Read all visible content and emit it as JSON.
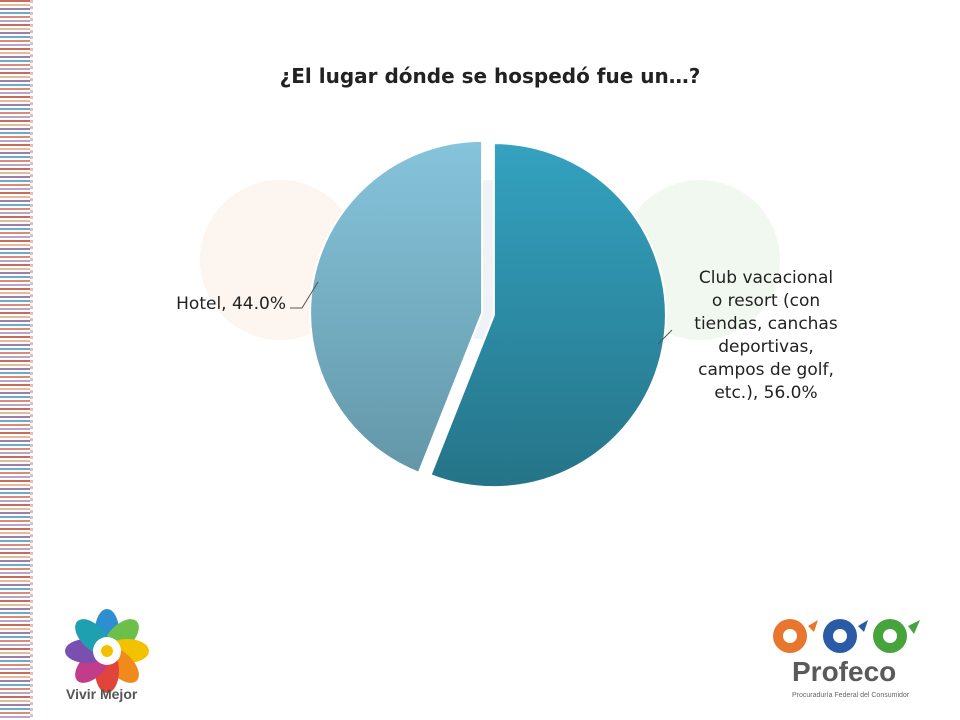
{
  "chart_data": {
    "type": "pie",
    "title": "¿El lugar dónde se hospedó fue un…?",
    "slices": [
      {
        "label_lines": [
          "Club vacacional",
          "o resort (con",
          "tiendas, canchas",
          "deportivas,",
          "campos de golf,",
          "etc.), 56.0%"
        ],
        "value": 56.0,
        "color": "#2d91ad"
      },
      {
        "label_lines": [
          "Hotel, 44.0%"
        ],
        "value": 44.0,
        "color": "#7ab4cd"
      }
    ],
    "start": "12 o'clock, clockwise",
    "legend": "none (data labels)"
  },
  "branding": {
    "left_logo_text": "Vivir Mejor",
    "right_logo_text": "Profeco",
    "right_logo_subtext": "Procuraduría Federal del Consumidor"
  }
}
